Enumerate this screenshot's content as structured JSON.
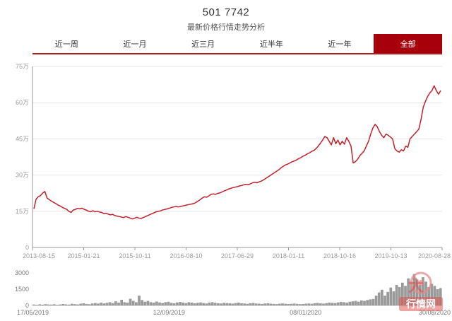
{
  "header": {
    "title": "501 7742",
    "subtitle": "最新价格行情走势分析"
  },
  "tabs": [
    {
      "label": "近一周",
      "active": false
    },
    {
      "label": "近一月",
      "active": false
    },
    {
      "label": "近三月",
      "active": false
    },
    {
      "label": "近半年",
      "active": false
    },
    {
      "label": "近一年",
      "active": false
    },
    {
      "label": "全部",
      "active": true
    }
  ],
  "colors": {
    "accent": "#b01d23",
    "line": "#c0212b",
    "volume": "#9a9a9a"
  },
  "watermark": {
    "text_top": "大",
    "text_bottom": "行情网",
    "icon": "daxinqing-logo-icon"
  },
  "chart_data": [
    {
      "type": "line",
      "title": "",
      "xlabel": "",
      "ylabel": "",
      "ylim": [
        0,
        750000
      ],
      "y_ticks": [
        0,
        150000,
        300000,
        450000,
        600000,
        750000
      ],
      "y_tick_labels": [
        "0",
        "15万",
        "30万",
        "45万",
        "60万",
        "75万"
      ],
      "x_tick_labels": [
        "2013-08-15",
        "2015-01-21",
        "2015-10-11",
        "2016-08-10",
        "2017-06-29",
        "2018-01-11",
        "2018-10-16",
        "2019-10-13",
        "2020-08-28"
      ],
      "grid": true,
      "series": [
        {
          "values": [
            160000,
            200000,
            210000,
            215000,
            225000,
            232000,
            205000,
            198000,
            192000,
            187000,
            182000,
            176000,
            172000,
            166000,
            162000,
            158000,
            150000,
            145000,
            155000,
            158000,
            162000,
            160000,
            163000,
            158000,
            155000,
            150000,
            148000,
            152000,
            148000,
            150000,
            147000,
            145000,
            140000,
            142000,
            138000,
            135000,
            137000,
            132000,
            130000,
            128000,
            126000,
            124000,
            128000,
            125000,
            122000,
            118000,
            121000,
            125000,
            122000,
            120000,
            124000,
            128000,
            132000,
            136000,
            140000,
            144000,
            148000,
            150000,
            152000,
            156000,
            158000,
            160000,
            163000,
            166000,
            168000,
            170000,
            168000,
            170000,
            172000,
            174000,
            176000,
            178000,
            180000,
            182000,
            186000,
            192000,
            198000,
            205000,
            210000,
            208000,
            214000,
            220000,
            222000,
            220000,
            224000,
            226000,
            230000,
            234000,
            238000,
            242000,
            245000,
            248000,
            250000,
            252000,
            255000,
            257000,
            260000,
            262000,
            260000,
            264000,
            268000,
            270000,
            268000,
            272000,
            275000,
            280000,
            286000,
            292000,
            298000,
            304000,
            310000,
            316000,
            322000,
            330000,
            336000,
            342000,
            345000,
            350000,
            355000,
            358000,
            362000,
            368000,
            372000,
            378000,
            382000,
            388000,
            392000,
            398000,
            402000,
            410000,
            420000,
            432000,
            445000,
            460000,
            455000,
            440000,
            425000,
            455000,
            430000,
            445000,
            425000,
            440000,
            428000,
            455000,
            440000,
            420000,
            350000,
            355000,
            365000,
            380000,
            390000,
            400000,
            420000,
            440000,
            470000,
            495000,
            510000,
            500000,
            480000,
            465000,
            455000,
            470000,
            465000,
            458000,
            450000,
            410000,
            400000,
            395000,
            405000,
            400000,
            420000,
            415000,
            450000,
            460000,
            470000,
            480000,
            490000,
            530000,
            580000,
            605000,
            625000,
            640000,
            650000,
            670000,
            650000,
            635000,
            650000
          ]
        }
      ]
    },
    {
      "type": "bar",
      "title": "",
      "xlabel": "",
      "ylabel": "",
      "ylim": [
        0,
        3000
      ],
      "y_ticks": [
        0,
        1500,
        3000
      ],
      "y_tick_labels": [
        "0",
        "1500",
        "3000"
      ],
      "x_tick_labels": [
        "17/05/2019",
        "12/09/2019",
        "08/01/2020",
        "30/08/2020"
      ],
      "series": [
        {
          "values": [
            80,
            60,
            100,
            70,
            120,
            90,
            80,
            110,
            60,
            90,
            130,
            100,
            80,
            150,
            120,
            90,
            160,
            200,
            140,
            110,
            180,
            220,
            170,
            260,
            190,
            240,
            300,
            210,
            380,
            260,
            520,
            300,
            260,
            620,
            420,
            300,
            900,
            500,
            340,
            420,
            300,
            260,
            360,
            280,
            220,
            300,
            340,
            240,
            200,
            280,
            320,
            260,
            220,
            300,
            260,
            200,
            240,
            280,
            220,
            180,
            260,
            300,
            240,
            200,
            180,
            240,
            220,
            200,
            170,
            220,
            260,
            200,
            180,
            150,
            200,
            230,
            180,
            160,
            140,
            180,
            200,
            160,
            140,
            120,
            160,
            180,
            150,
            130,
            150,
            170,
            140,
            120,
            130,
            160,
            180,
            150,
            200,
            230,
            190,
            170,
            210,
            260,
            240,
            220,
            280,
            320,
            300,
            260,
            340,
            380,
            420,
            350,
            460,
            420,
            500,
            560,
            600,
            900,
            1200,
            1450,
            900,
            1250,
            1650,
            1300,
            1900,
            1700,
            2100,
            1800,
            2500,
            2200,
            2900,
            2400,
            1900,
            2600,
            2200,
            1700,
            2000,
            1800,
            1500,
            1600
          ]
        }
      ]
    }
  ]
}
